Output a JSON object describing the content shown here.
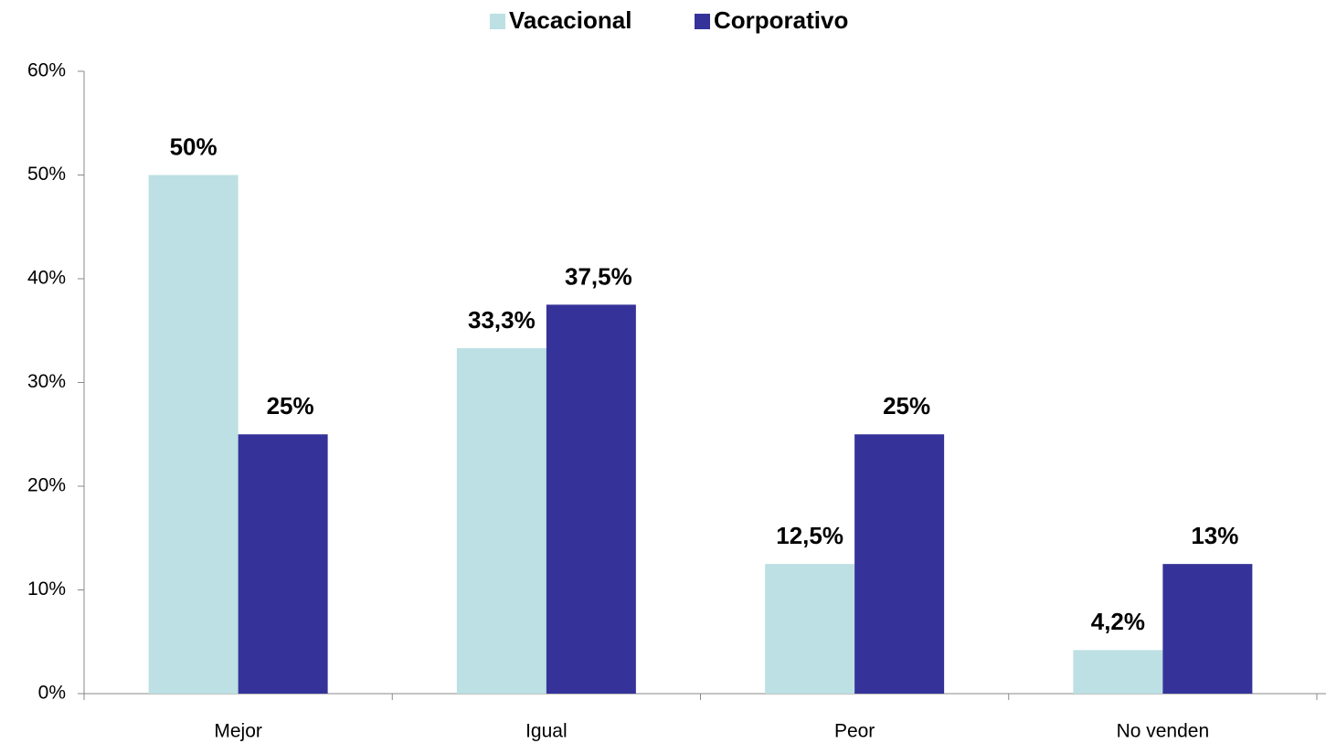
{
  "chart_data": {
    "type": "bar",
    "categories": [
      "Mejor",
      "Igual",
      "Peor",
      "No venden"
    ],
    "series": [
      {
        "name": "Vacacional",
        "color": "#bce0e3",
        "values": [
          50,
          33.3,
          12.5,
          4.2
        ],
        "value_labels": [
          "50%",
          "33,3%",
          "12,5%",
          "4,2%"
        ]
      },
      {
        "name": "Corporativo",
        "color": "#353399",
        "values": [
          25,
          37.5,
          25,
          12.5
        ],
        "value_labels": [
          "25%",
          "37,5%",
          "25%",
          "13%"
        ]
      }
    ],
    "ylim": [
      0,
      60
    ],
    "yticks": [
      {
        "value": 0,
        "label": "0%"
      },
      {
        "value": 10,
        "label": "10%"
      },
      {
        "value": 20,
        "label": "20%"
      },
      {
        "value": 30,
        "label": "30%"
      },
      {
        "value": 40,
        "label": "40%"
      },
      {
        "value": 50,
        "label": "50%"
      },
      {
        "value": 60,
        "label": "60%"
      }
    ],
    "legend": "top"
  }
}
